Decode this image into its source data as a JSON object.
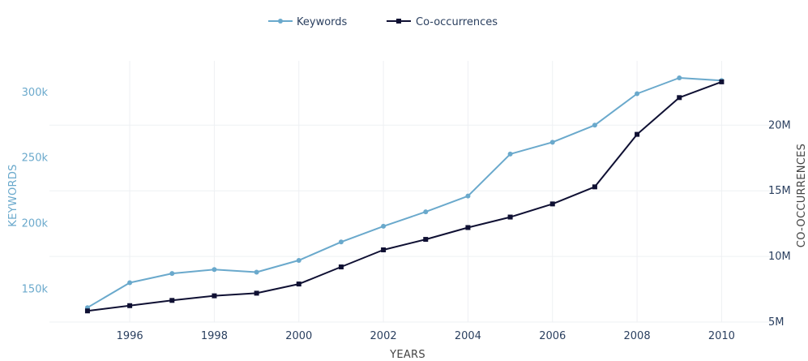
{
  "chart_data": {
    "type": "line",
    "title": "",
    "xlabel": "YEARS",
    "ylabel_left": "KEYWORDS",
    "ylabel_right": "CO-OCCURRENCES",
    "x": [
      1995,
      1996,
      1997,
      1998,
      1999,
      2000,
      2001,
      2002,
      2003,
      2004,
      2005,
      2006,
      2007,
      2008,
      2009,
      2010
    ],
    "x_ticks": [
      1996,
      1998,
      2000,
      2002,
      2004,
      2006,
      2008,
      2010
    ],
    "x_tick_labels": [
      "1996",
      "1998",
      "2000",
      "2002",
      "2004",
      "2006",
      "2008",
      "2010"
    ],
    "xlim": [
      1994.1,
      2011.2
    ],
    "y_left": {
      "ticks": [
        150000,
        200000,
        250000,
        300000
      ],
      "tick_labels": [
        "150k",
        "200k",
        "250k",
        "300k"
      ],
      "range": [
        125000,
        324000
      ]
    },
    "y_right": {
      "ticks": [
        5000000,
        10000000,
        15000000,
        20000000
      ],
      "tick_labels": [
        "5M",
        "10M",
        "15M",
        "20M"
      ],
      "range": [
        5000000,
        24900000
      ]
    },
    "series": [
      {
        "name": "Keywords",
        "axis": "left",
        "color": "#6aa9cc",
        "marker": "circle",
        "values": [
          136000,
          155000,
          162000,
          165000,
          163000,
          172000,
          186000,
          198000,
          209000,
          221000,
          253000,
          262000,
          275000,
          299000,
          311000,
          309000
        ]
      },
      {
        "name": "Co-occurrences",
        "axis": "right",
        "color": "#0f1033",
        "marker": "square",
        "values": [
          5850000,
          6250000,
          6650000,
          7000000,
          7200000,
          7900000,
          9200000,
          10500000,
          11300000,
          12200000,
          13000000,
          14000000,
          15300000,
          19300000,
          22100000,
          23300000
        ]
      }
    ],
    "legend": [
      "Keywords",
      "Co-occurrences"
    ],
    "legend_position": "top-center",
    "grid": true
  },
  "colors": {
    "keywords": "#6aa9cc",
    "cooccurrences": "#0f1033",
    "grid": "#eef0f3",
    "tick_text": "#2a3f5f",
    "axis_title": "#444444"
  }
}
